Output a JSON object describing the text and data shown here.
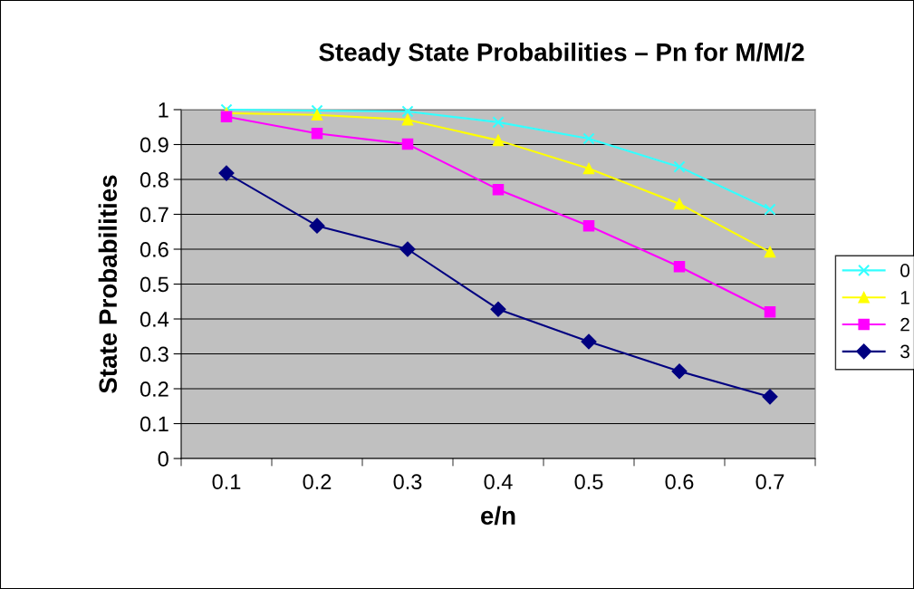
{
  "chart_data": {
    "type": "line",
    "title": "Steady State Probabilities – Pn for M/M/2",
    "xlabel": "e/n",
    "ylabel": "State Probabilities",
    "categories": [
      "0.1",
      "0.2",
      "0.3",
      "0.4",
      "0.5",
      "0.6",
      "0.7"
    ],
    "series": [
      {
        "name": "0",
        "color": "#33ffff",
        "marker": "cross",
        "values": [
          1.0,
          0.997,
          0.995,
          0.964,
          0.917,
          0.836,
          0.714
        ]
      },
      {
        "name": "1",
        "color": "#ffff00",
        "marker": "triangle",
        "values": [
          0.99,
          0.985,
          0.971,
          0.912,
          0.831,
          0.73,
          0.592
        ]
      },
      {
        "name": "2",
        "color": "#ff00ff",
        "marker": "square",
        "values": [
          0.98,
          0.932,
          0.901,
          0.771,
          0.667,
          0.55,
          0.42
        ]
      },
      {
        "name": "3",
        "color": "#000080",
        "marker": "diamond",
        "values": [
          0.818,
          0.667,
          0.6,
          0.428,
          0.335,
          0.25,
          0.177
        ]
      }
    ],
    "ylim": [
      0,
      1
    ],
    "yticks": [
      0,
      0.1,
      0.2,
      0.3,
      0.4,
      0.5,
      0.6,
      0.7,
      0.8,
      0.9,
      1
    ],
    "grid": "y",
    "legend": "right"
  }
}
